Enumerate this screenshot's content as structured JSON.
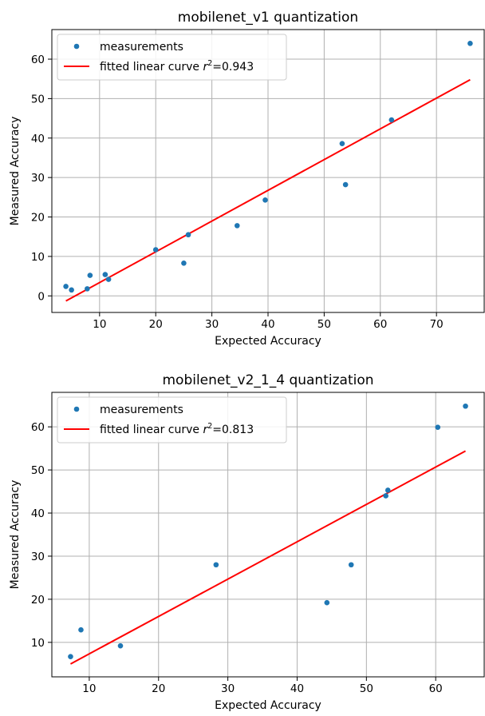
{
  "chart_data": [
    {
      "type": "scatter",
      "title": "mobilenet_v1 quantization",
      "xlabel": "Expected Accuracy",
      "ylabel": "Measured Accuracy",
      "xlim": [
        1.5,
        78.5
      ],
      "ylim": [
        -4.2,
        67.5
      ],
      "xticks": [
        10,
        20,
        30,
        40,
        50,
        60,
        70
      ],
      "yticks": [
        0,
        10,
        20,
        30,
        40,
        50,
        60
      ],
      "grid": true,
      "legend_position": "top-left",
      "legend": {
        "scatter_label": "measurements",
        "fit_label": "fitted linear curve ",
        "fit_r": "r",
        "fit_exp": "2",
        "fit_value": "=0.943"
      },
      "points": {
        "x": [
          4.0,
          5.0,
          7.8,
          8.3,
          11.0,
          11.6,
          20.0,
          25.0,
          25.8,
          34.5,
          39.5,
          53.2,
          53.8,
          62.0,
          76.0
        ],
        "y": [
          2.4,
          1.5,
          1.8,
          5.2,
          5.4,
          4.2,
          11.7,
          8.3,
          15.5,
          17.8,
          24.3,
          38.6,
          28.2,
          44.6,
          64.0
        ]
      },
      "fit": {
        "x": [
          4.0,
          76.0
        ],
        "y": [
          -1.3,
          54.8
        ]
      }
    },
    {
      "type": "scatter",
      "title": "mobilenet_v2_1_4 quantization",
      "xlabel": "Expected Accuracy",
      "ylabel": "Measured Accuracy",
      "xlim": [
        4.6,
        67.0
      ],
      "ylim": [
        2.0,
        68.0
      ],
      "xticks": [
        10,
        20,
        30,
        40,
        50,
        60
      ],
      "yticks": [
        10,
        20,
        30,
        40,
        50,
        60
      ],
      "grid": true,
      "legend_position": "top-left",
      "legend": {
        "scatter_label": "measurements",
        "fit_label": "fitted linear curve ",
        "fit_r": "r",
        "fit_exp": "2",
        "fit_value": "=0.813"
      },
      "points": {
        "x": [
          7.3,
          8.8,
          14.5,
          28.3,
          44.3,
          47.8,
          52.8,
          53.1,
          60.3,
          64.3
        ],
        "y": [
          6.7,
          12.9,
          9.2,
          28.0,
          19.2,
          28.0,
          44.0,
          45.3,
          59.9,
          64.8
        ]
      },
      "fit": {
        "x": [
          7.3,
          64.3
        ],
        "y": [
          5.0,
          54.4
        ]
      }
    }
  ],
  "colors": {
    "points": "#1f77b4",
    "fit": "#ff0000",
    "grid": "#b0b0b0"
  }
}
